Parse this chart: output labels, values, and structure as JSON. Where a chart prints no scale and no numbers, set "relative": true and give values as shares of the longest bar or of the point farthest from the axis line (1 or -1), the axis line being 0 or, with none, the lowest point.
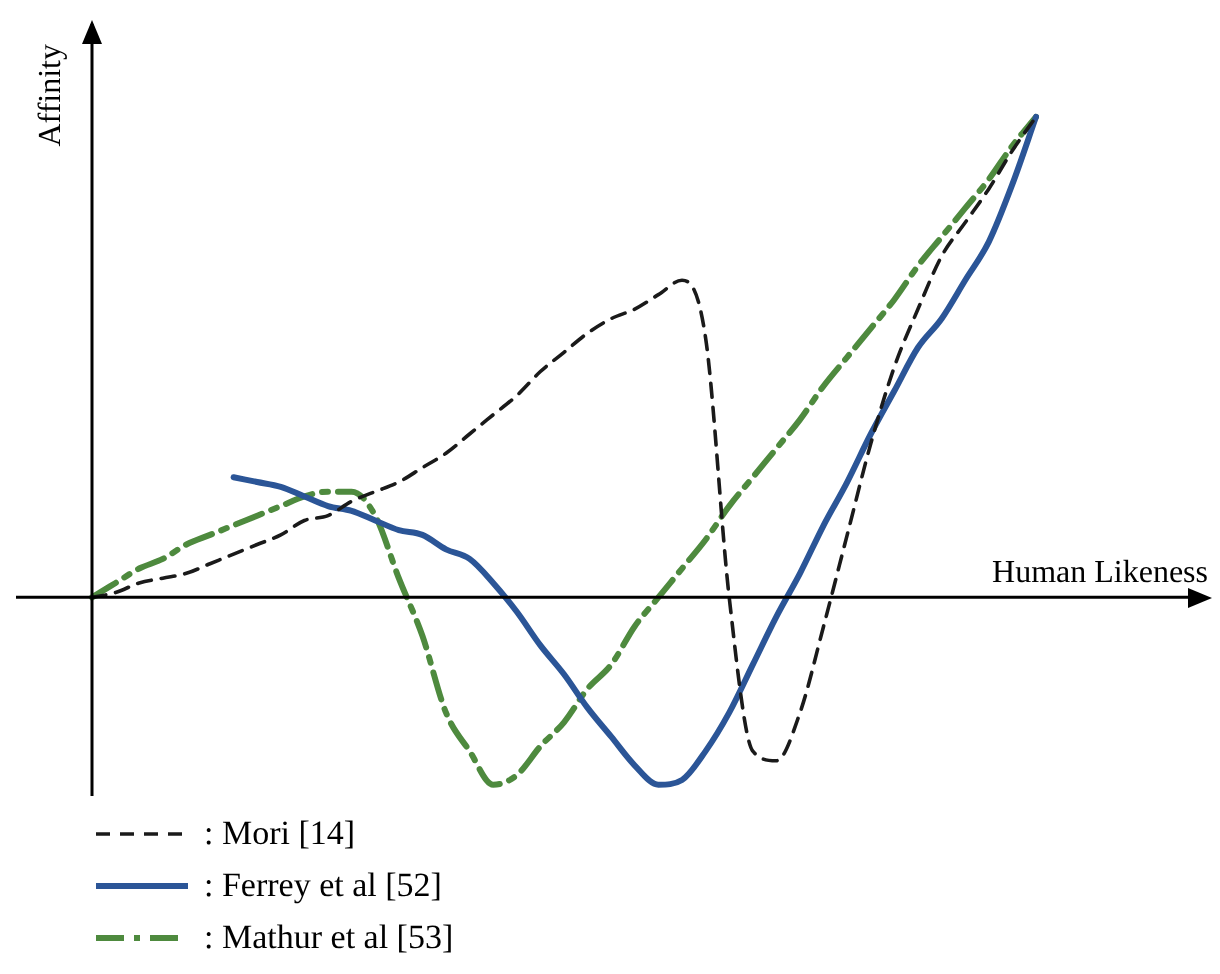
{
  "chart_data": {
    "type": "line",
    "relative": true,
    "xlabel": "Human Likeness",
    "ylabel": "Affinity",
    "categories": [
      null,
      null,
      null,
      null,
      null,
      null,
      null,
      null,
      null,
      null,
      null,
      null,
      null,
      null,
      null,
      null,
      null,
      null,
      null,
      null,
      null,
      null,
      null,
      null,
      null,
      null,
      null,
      null,
      null,
      null,
      null,
      null,
      null,
      null,
      null,
      null,
      null,
      null,
      null,
      null,
      null
    ],
    "legend": "bottom left",
    "marker": "none",
    "series": [
      {
        "name": ": Mori [14]",
        "color": "#1a1a1a",
        "line_style": "dashed",
        "values": [
          0,
          0.01,
          0.03,
          0.04,
          0.05,
          0.07,
          0.09,
          0.11,
          0.13,
          0.16,
          0.17,
          0.2,
          0.22,
          0.24,
          0.27,
          0.3,
          0.34,
          0.38,
          0.42,
          0.47,
          0.51,
          0.55,
          0.58,
          0.6,
          0.63,
          0.66,
          0.54,
          0,
          -0.32,
          -0.34,
          -0.24,
          -0.06,
          0.13,
          0.32,
          0.48,
          0.6,
          0.71,
          0.78,
          0.85,
          0.93,
          1
        ]
      },
      {
        "name": ": Ferrey et al [52]",
        "color": "#2b5597",
        "line_style": "solid",
        "values": [
          null,
          null,
          null,
          null,
          null,
          null,
          0.25,
          0.24,
          0.23,
          0.21,
          0.19,
          0.18,
          0.16,
          0.14,
          0.13,
          0.1,
          0.08,
          0.03,
          -0.03,
          -0.1,
          -0.16,
          -0.23,
          -0.29,
          -0.35,
          -0.39,
          -0.38,
          -0.32,
          -0.24,
          -0.14,
          -0.04,
          0.05,
          0.15,
          0.24,
          0.34,
          0.43,
          0.52,
          0.58,
          0.66,
          0.74,
          0.86,
          1
        ]
      },
      {
        "name": ": Mathur et al [53]",
        "color": "#4e8a3e",
        "line_style": "dashdot",
        "values": [
          0,
          0.03,
          0.06,
          0.08,
          0.11,
          0.13,
          0.15,
          0.17,
          0.19,
          0.21,
          0.22,
          0.22,
          0.17,
          0.04,
          -0.08,
          -0.24,
          -0.32,
          -0.39,
          -0.37,
          -0.31,
          -0.26,
          -0.19,
          -0.14,
          -0.06,
          0,
          0.06,
          0.12,
          0.19,
          0.25,
          0.31,
          0.37,
          0.44,
          0.5,
          0.56,
          0.62,
          0.69,
          0.75,
          0.81,
          0.87,
          0.94,
          1
        ]
      }
    ]
  }
}
